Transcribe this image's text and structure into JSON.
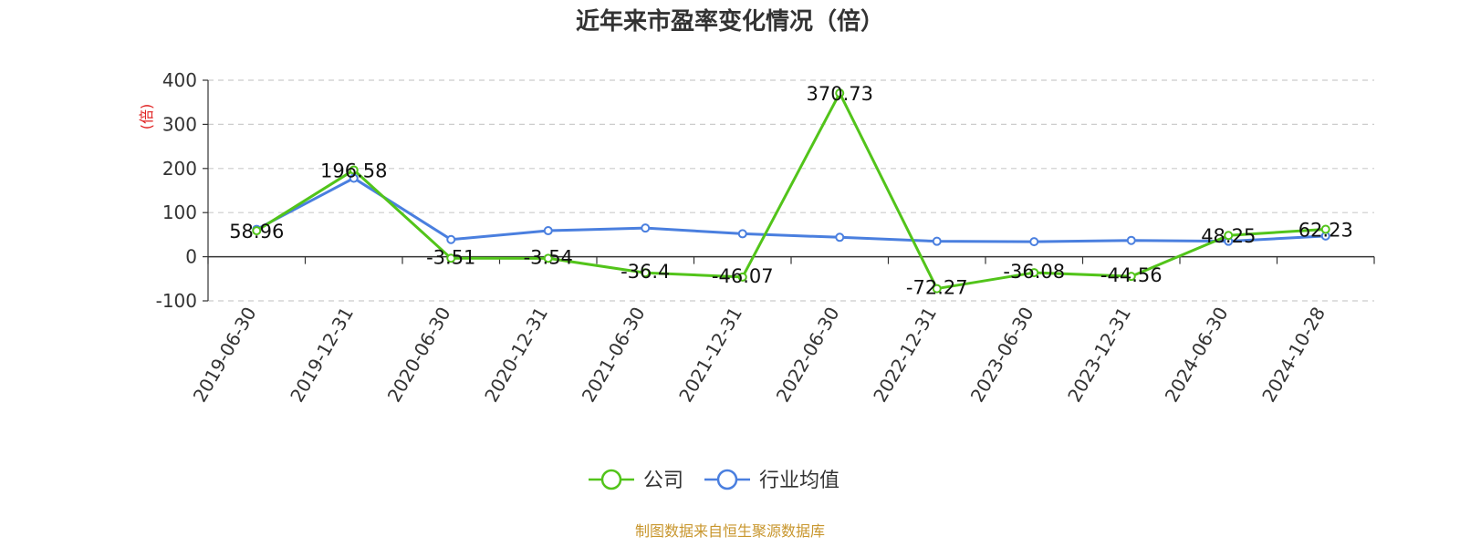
{
  "chart_data": {
    "type": "line",
    "title": "近年来市盈率变化情况（倍）",
    "ylabel": "(倍)",
    "xlabel": "",
    "ylim": [
      -100,
      400
    ],
    "yticks": [
      400,
      300,
      200,
      100,
      0,
      -100
    ],
    "grid": true,
    "legend_position": "bottom-center",
    "categories": [
      "2019-06-30",
      "2019-12-31",
      "2020-06-30",
      "2020-12-31",
      "2021-06-30",
      "2021-12-31",
      "2022-06-30",
      "2022-12-31",
      "2023-06-30",
      "2023-12-31",
      "2024-06-30",
      "2024-10-28"
    ],
    "series": [
      {
        "name": "公司",
        "color": "#52c41a",
        "values": [
          58.96,
          196.58,
          -3.51,
          -3.54,
          -36.4,
          -46.07,
          370.73,
          -72.27,
          -36.08,
          -44.56,
          48.25,
          62.23
        ],
        "labels": [
          "58.96",
          "196.58",
          "-3.51",
          "-3.54",
          "-36.4",
          "-46.07",
          "370.73",
          "-72.27",
          "-36.08",
          "-44.56",
          "48.25",
          "62.23"
        ]
      },
      {
        "name": "行业均值",
        "color": "#4a7fdf",
        "values": [
          62,
          178,
          39,
          59,
          65,
          52,
          44,
          35,
          34,
          37,
          35,
          47
        ]
      }
    ],
    "source_note": "制图数据来自恒生聚源数据库"
  }
}
